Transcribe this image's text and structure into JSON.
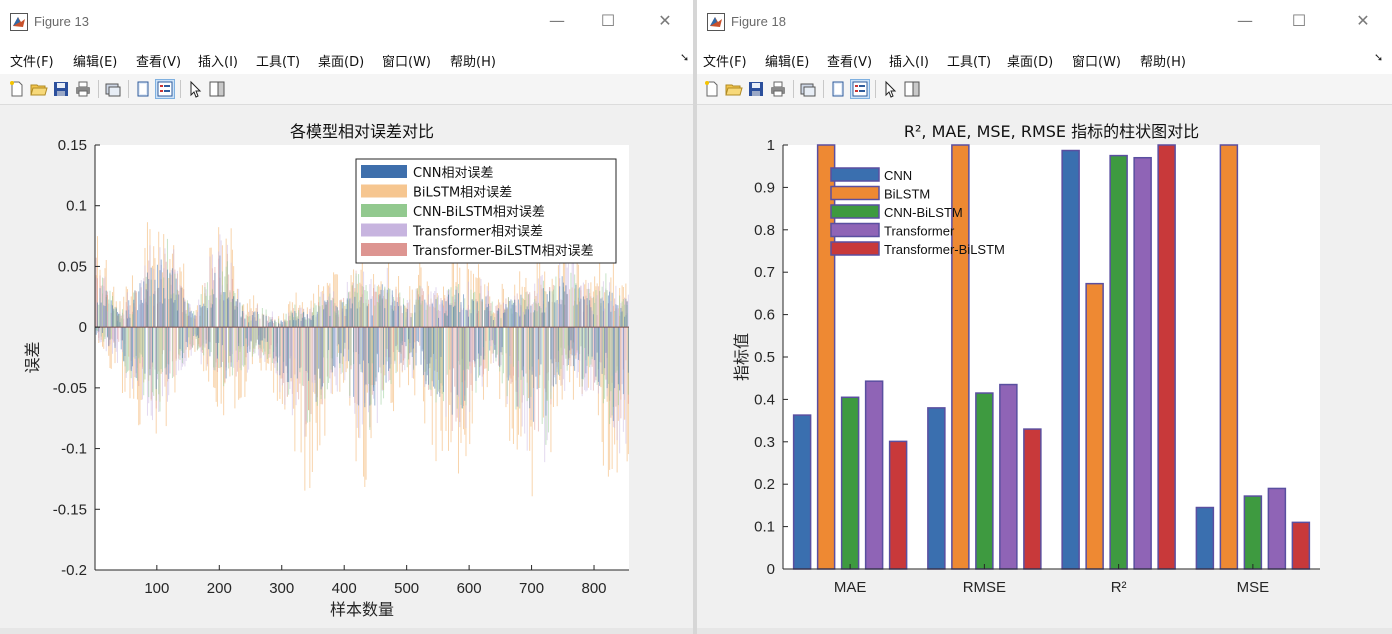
{
  "windows": [
    {
      "title": "Figure 13",
      "menu": [
        "文件(F)",
        "编辑(E)",
        "查看(V)",
        "插入(I)",
        "工具(T)",
        "桌面(D)",
        "窗口(W)",
        "帮助(H)"
      ],
      "toolbar_icons": [
        "new-file-icon",
        "open-folder-icon",
        "save-icon",
        "print-icon",
        "link-icon",
        "figure-icon",
        "property-editor-icon",
        "cursor-icon",
        "panel-icon"
      ]
    },
    {
      "title": "Figure 18",
      "menu": [
        "文件(F)",
        "编辑(E)",
        "查看(V)",
        "插入(I)",
        "工具(T)",
        "桌面(D)",
        "窗口(W)",
        "帮助(H)"
      ],
      "toolbar_icons": [
        "new-file-icon",
        "open-folder-icon",
        "save-icon",
        "print-icon",
        "link-icon",
        "figure-icon",
        "property-editor-icon",
        "cursor-icon",
        "panel-icon"
      ]
    }
  ],
  "chart_data": [
    {
      "type": "bar",
      "title": "各模型相对误差对比",
      "xlabel": "样本数量",
      "ylabel": "误差",
      "xlim": [
        1,
        856
      ],
      "ylim": [
        -0.2,
        0.15
      ],
      "xticks": [
        100,
        200,
        300,
        400,
        500,
        600,
        700,
        800
      ],
      "yticks": [
        -0.2,
        -0.15,
        -0.1,
        -0.05,
        0,
        0.05,
        0.1,
        0.15
      ],
      "ytick_labels": [
        "-0.2",
        "-0.15",
        "-0.1",
        "-0.05",
        "0",
        "0.05",
        "0.1",
        "0.15"
      ],
      "legend_position": "top-right",
      "grid": false,
      "series": [
        {
          "name": "CNN相对误差",
          "color": "#3e6fac"
        },
        {
          "name": "BiLSTM相对误差",
          "color": "#f6c690"
        },
        {
          "name": "CNN-BiLSTM相对误差",
          "color": "#92c98f"
        },
        {
          "name": "Transformer相对误差",
          "color": "#c7b4df"
        },
        {
          "name": "Transformer-BiLSTM相对误差",
          "color": "#dd9591"
        }
      ],
      "envelope": {
        "x": [
          1,
          20,
          40,
          60,
          80,
          100,
          120,
          140,
          160,
          180,
          200,
          220,
          240,
          260,
          280,
          300,
          320,
          340,
          360,
          380,
          400,
          420,
          440,
          460,
          480,
          500,
          520,
          540,
          560,
          580,
          600,
          620,
          640,
          660,
          680,
          700,
          720,
          740,
          760,
          780,
          800,
          820,
          840,
          856
        ],
        "upper": [
          0.1,
          0.06,
          0.02,
          0.05,
          0.09,
          0.1,
          0.12,
          0.06,
          0.02,
          0.07,
          0.11,
          0.08,
          0.02,
          0.03,
          0.02,
          0.01,
          0.03,
          0.02,
          0.04,
          0.05,
          0.04,
          0.08,
          0.05,
          0.07,
          0.06,
          0.03,
          0.06,
          0.05,
          0.04,
          0.07,
          0.05,
          0.06,
          0.03,
          0.04,
          0.05,
          0.05,
          0.06,
          0.07,
          0.09,
          0.06,
          0.05,
          0.07,
          0.04,
          0.05
        ],
        "lower": [
          -0.01,
          -0.03,
          -0.05,
          -0.07,
          -0.09,
          -0.12,
          -0.09,
          -0.05,
          -0.03,
          -0.05,
          -0.07,
          -0.09,
          -0.06,
          -0.03,
          -0.05,
          -0.08,
          -0.11,
          -0.14,
          -0.12,
          -0.08,
          -0.06,
          -0.12,
          -0.14,
          -0.1,
          -0.07,
          -0.05,
          -0.07,
          -0.1,
          -0.13,
          -0.15,
          -0.1,
          -0.07,
          -0.05,
          -0.09,
          -0.13,
          -0.14,
          -0.16,
          -0.09,
          -0.06,
          -0.08,
          -0.1,
          -0.13,
          -0.15,
          -0.13
        ]
      }
    },
    {
      "type": "bar",
      "title": "R², MAE, MSE, RMSE 指标的柱状图对比",
      "xlabel": "",
      "ylabel": "指标值",
      "categories": [
        "MAE",
        "RMSE",
        "R²",
        "MSE"
      ],
      "ylim": [
        0,
        1
      ],
      "yticks": [
        0,
        0.1,
        0.2,
        0.3,
        0.4,
        0.5,
        0.6,
        0.7,
        0.8,
        0.9,
        1
      ],
      "ytick_labels": [
        "0",
        "0.1",
        "0.2",
        "0.3",
        "0.4",
        "0.5",
        "0.6",
        "0.7",
        "0.8",
        "0.9",
        "1"
      ],
      "legend_position": "top-left",
      "grid": false,
      "series": [
        {
          "name": "CNN",
          "color": "#3a6faf",
          "values": [
            0.363,
            0.38,
            0.987,
            0.145
          ]
        },
        {
          "name": "BiLSTM",
          "color": "#ee8933",
          "values": [
            1.0,
            1.0,
            0.673,
            1.0
          ]
        },
        {
          "name": "CNN-BiLSTM",
          "color": "#3e9a40",
          "values": [
            0.405,
            0.415,
            0.975,
            0.172
          ]
        },
        {
          "name": "Transformer",
          "color": "#8f64b6",
          "values": [
            0.443,
            0.435,
            0.97,
            0.19
          ]
        },
        {
          "name": "Transformer-BiLSTM",
          "color": "#c8393a",
          "values": [
            0.301,
            0.33,
            1.0,
            0.11
          ]
        }
      ]
    }
  ]
}
